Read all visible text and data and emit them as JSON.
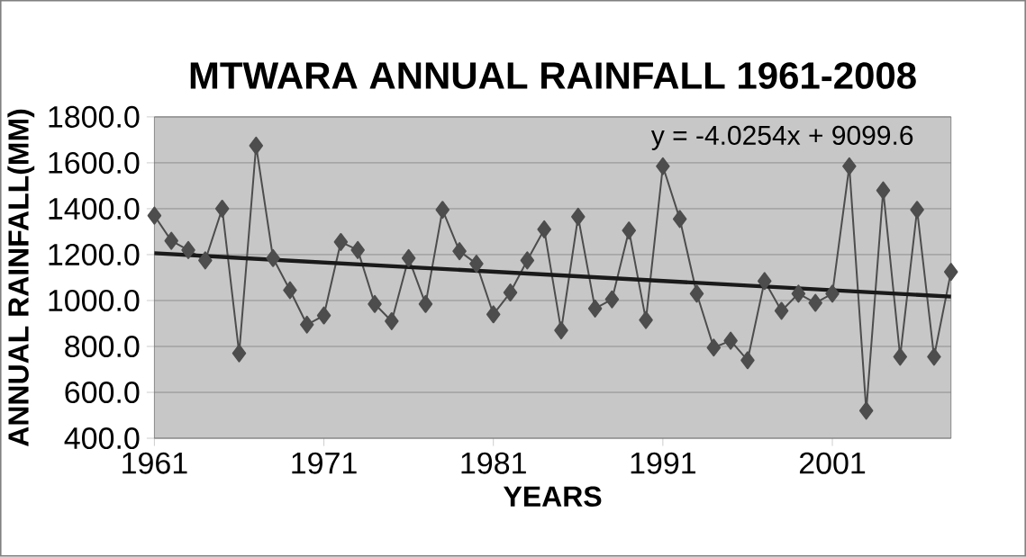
{
  "chart_data": {
    "type": "line",
    "title": "MTWARA ANNUAL RAINFALL 1961-2008",
    "xlabel": "YEARS",
    "ylabel": "ANNUAL RAINFALL(MM)",
    "x": [
      1961,
      1962,
      1963,
      1964,
      1965,
      1966,
      1967,
      1968,
      1969,
      1970,
      1971,
      1972,
      1973,
      1974,
      1975,
      1976,
      1977,
      1978,
      1979,
      1980,
      1981,
      1982,
      1983,
      1984,
      1985,
      1986,
      1987,
      1988,
      1989,
      1990,
      1991,
      1992,
      1993,
      1994,
      1995,
      1996,
      1997,
      1998,
      1999,
      2000,
      2001,
      2002,
      2003,
      2004,
      2005,
      2006,
      2007,
      2008
    ],
    "series": [
      {
        "color": "#4d4d4d",
        "marker": "diamond",
        "values": [
          1370,
          1260,
          1220,
          1175,
          1400,
          770,
          1675,
          1185,
          1045,
          895,
          935,
          1255,
          1220,
          985,
          910,
          1185,
          985,
          1395,
          1215,
          1160,
          940,
          1035,
          1175,
          1310,
          870,
          1365,
          965,
          1005,
          1305,
          915,
          1585,
          1355,
          1030,
          795,
          825,
          740,
          1085,
          955,
          1030,
          990,
          1030,
          1585,
          520,
          1480,
          755,
          1395,
          755,
          1125
        ]
      },
      {
        "color": "#1a1a1a",
        "marker": "none",
        "x": [
          1961,
          2008
        ],
        "values": [
          1206,
          1017
        ]
      }
    ],
    "annotations": [
      "y = -4.0254x + 9099.6"
    ],
    "xlim": [
      1961,
      2008
    ],
    "xticks": [
      1961,
      1971,
      1981,
      1991,
      2001
    ],
    "ylim": [
      400,
      1800
    ],
    "yticks": [
      {
        "value": 400,
        "label": "400.0"
      },
      {
        "value": 600,
        "label": "600.0"
      },
      {
        "value": 800,
        "label": "800.0"
      },
      {
        "value": 1000,
        "label": "1000.0"
      },
      {
        "value": 1200,
        "label": "1200.0"
      },
      {
        "value": 1400,
        "label": "1400.0"
      },
      {
        "value": 1600,
        "label": "1600.0"
      },
      {
        "value": 1800,
        "label": "1800.0"
      }
    ],
    "grid": "y"
  }
}
